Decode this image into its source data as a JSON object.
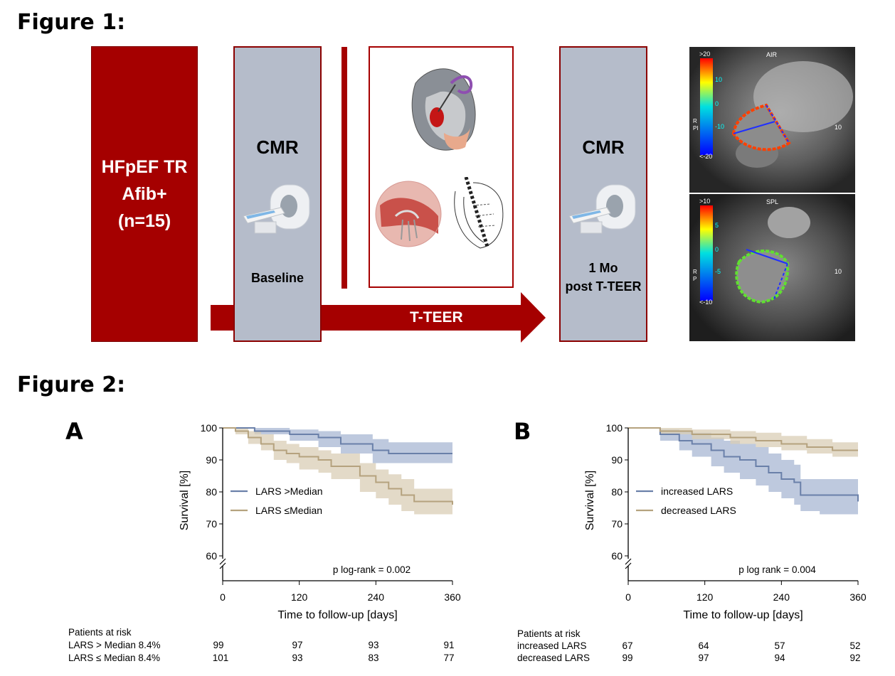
{
  "figure1": {
    "title": "Figure 1:",
    "cohort": [
      "HFpEF TR",
      "Afib+",
      "(n=15)"
    ],
    "cmr_label": "CMR",
    "baseline_label": "Baseline",
    "followup_label_1": "1 Mo",
    "followup_label_2": "post T-TEER",
    "arrow_label": "T-TEER",
    "mri_top": {
      "label": "AIR",
      "bar_top": ">20",
      "t1": "10",
      "t2": "0",
      "t3": "-10",
      "bar_bottom": "<-20",
      "side": "RPI",
      "right": "10"
    },
    "mri_bottom": {
      "label": "SPL",
      "bar_top": ">10",
      "t1": "5",
      "t2": "0",
      "t3": "-5",
      "bar_bottom": "<-10",
      "side": "RP",
      "right": "10"
    }
  },
  "figure2": {
    "title": "Figure 2:"
  },
  "chart_data": [
    {
      "panel": "A",
      "type": "line",
      "xlabel": "Time to follow-up [days]",
      "ylabel": "Survival [%]",
      "xlim": [
        0,
        360
      ],
      "ylim": [
        60,
        100
      ],
      "xticks": [
        0,
        120,
        240,
        360
      ],
      "yticks": [
        60,
        70,
        80,
        90,
        100
      ],
      "annotation": "p log-rank = 0.002",
      "legend_position": "left",
      "series": [
        {
          "name": "LARS >Median",
          "color": "#6a80a9",
          "band": "#a8b7d3",
          "x": [
            0,
            50,
            105,
            150,
            185,
            235,
            260,
            360
          ],
          "y": [
            100,
            99,
            98,
            97,
            95,
            93,
            92,
            92
          ],
          "lower": [
            100,
            98,
            96,
            94,
            92,
            89,
            89,
            89
          ],
          "upper": [
            100,
            100,
            99.5,
            99,
            98,
            96.5,
            95.5,
            95
          ]
        },
        {
          "name": "LARS ≤Median",
          "color": "#b5a27e",
          "band": "#d9ceb6",
          "x": [
            0,
            20,
            40,
            60,
            80,
            100,
            120,
            150,
            170,
            195,
            215,
            240,
            260,
            280,
            300,
            360
          ],
          "y": [
            100,
            99,
            97,
            95,
            93,
            92,
            91,
            90,
            88,
            88,
            85,
            83,
            81,
            79,
            77,
            76
          ],
          "lower": [
            100,
            98,
            95,
            93,
            90,
            89,
            87,
            86,
            84,
            84,
            80,
            78,
            76,
            74,
            73,
            72
          ],
          "upper": [
            100,
            100,
            99,
            98,
            96,
            95,
            94,
            93,
            92,
            92,
            89,
            87,
            85.5,
            84,
            81,
            80
          ]
        }
      ],
      "risk_table": {
        "header": "Patients at risk",
        "rows": [
          {
            "label": "LARS > Median 8.4%",
            "values": [
              "99",
              "97",
              "93",
              "91"
            ]
          },
          {
            "label": "LARS ≤ Median 8.4%",
            "values": [
              "101",
              "93",
              "83",
              "77"
            ]
          }
        ]
      }
    },
    {
      "panel": "B",
      "type": "line",
      "xlabel": "Time to follow-up [days]",
      "ylabel": "Survival [%]",
      "xlim": [
        0,
        360
      ],
      "ylim": [
        60,
        100
      ],
      "xticks": [
        0,
        120,
        240,
        360
      ],
      "yticks": [
        60,
        70,
        80,
        90,
        100
      ],
      "annotation": "p log rank = 0.004",
      "legend_position": "left",
      "series": [
        {
          "name": "increased LARS",
          "color": "#6a80a9",
          "band": "#a8b7d3",
          "x": [
            0,
            50,
            80,
            100,
            130,
            150,
            175,
            200,
            220,
            240,
            260,
            270,
            300,
            360
          ],
          "y": [
            100,
            98,
            96,
            95,
            93,
            91,
            90,
            88,
            86,
            84,
            83,
            79,
            79,
            77
          ],
          "lower": [
            100,
            96,
            93,
            91,
            88,
            86,
            84,
            82,
            80,
            78,
            76,
            74,
            73,
            72.5
          ],
          "upper": [
            100,
            99.5,
            99,
            98.5,
            97,
            96,
            95,
            94,
            92,
            90,
            88.5,
            84,
            84,
            82.5
          ]
        },
        {
          "name": "decreased LARS",
          "color": "#b5a27e",
          "band": "#d9ceb6",
          "x": [
            0,
            50,
            100,
            160,
            200,
            240,
            280,
            320,
            360
          ],
          "y": [
            100,
            99,
            98,
            97,
            96,
            95,
            94,
            93,
            93
          ],
          "lower": [
            100,
            98,
            96.5,
            95,
            94,
            93,
            92,
            91,
            90.5
          ],
          "upper": [
            100,
            100,
            99.5,
            99,
            98.5,
            97.5,
            96.5,
            95.5,
            95
          ]
        }
      ],
      "risk_table": {
        "header": "Patients at risk",
        "rows": [
          {
            "label": "increased LARS",
            "values": [
              "67",
              "64",
              "57",
              "52"
            ]
          },
          {
            "label": "decreased LARS",
            "values": [
              "99",
              "97",
              "94",
              "92"
            ]
          }
        ]
      }
    }
  ]
}
